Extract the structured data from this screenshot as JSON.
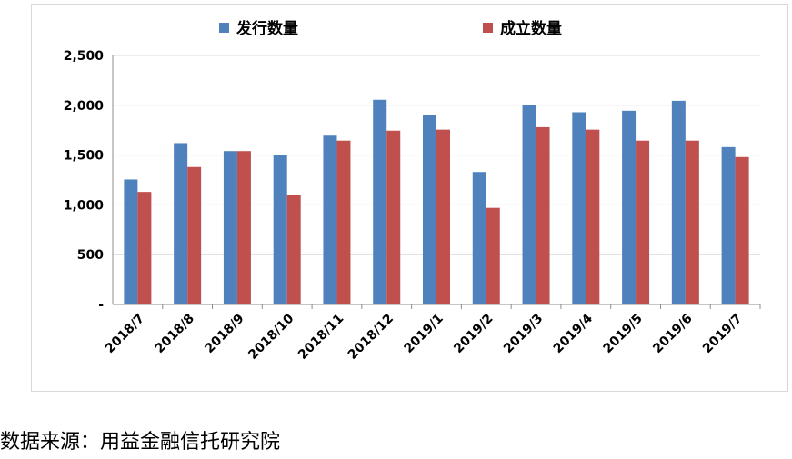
{
  "source_note": "数据来源：用益金融信托研究院",
  "chart_data": {
    "type": "bar",
    "title": "",
    "xlabel": "",
    "ylabel": "",
    "categories": [
      "2018/7",
      "2018/8",
      "2018/9",
      "2018/10",
      "2018/11",
      "2018/12",
      "2019/1",
      "2019/2",
      "2019/3",
      "2019/4",
      "2019/5",
      "2019/6",
      "2019/7"
    ],
    "series": [
      {
        "name": "发行数量",
        "color": "#4f81bd",
        "values": [
          1255,
          1620,
          1540,
          1500,
          1695,
          2055,
          1905,
          1330,
          2000,
          1930,
          1945,
          2045,
          1580
        ]
      },
      {
        "name": "成立数量",
        "color": "#c0504d",
        "values": [
          1130,
          1380,
          1540,
          1095,
          1645,
          1745,
          1755,
          970,
          1780,
          1755,
          1645,
          1645,
          1480
        ]
      }
    ],
    "ylim": [
      0,
      2500
    ],
    "yticks": [
      0,
      500,
      1000,
      1500,
      2000,
      2500
    ],
    "ytick_labels": [
      "-",
      "500",
      "1,000",
      "1,500",
      "2,000",
      "2,500"
    ],
    "grid": true,
    "legend": "top-center"
  }
}
